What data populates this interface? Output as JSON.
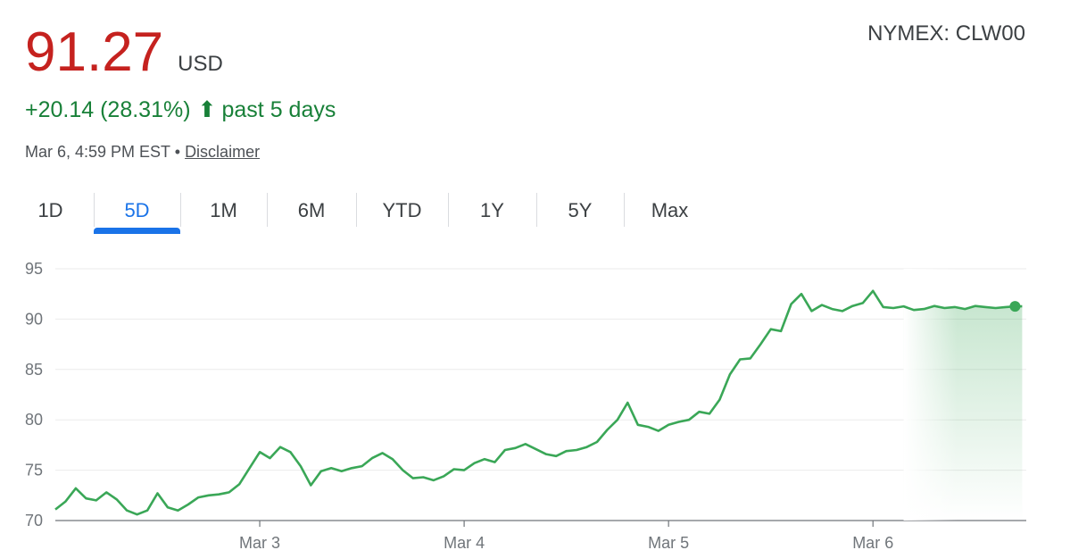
{
  "quote": {
    "price": "91.27",
    "currency": "USD",
    "exchange": "NYMEX: CLW00",
    "change": "+20.14 (28.31%)",
    "change_arrow": "⬆",
    "period_text": "past 5 days",
    "timestamp": "Mar 6, 4:59 PM EST •",
    "disclaimer": "Disclaimer"
  },
  "tabs": [
    {
      "label": "1D"
    },
    {
      "label": "5D",
      "active": true
    },
    {
      "label": "1M"
    },
    {
      "label": "6M"
    },
    {
      "label": "YTD"
    },
    {
      "label": "1Y"
    },
    {
      "label": "5Y"
    },
    {
      "label": "Max"
    }
  ],
  "colors": {
    "price": "#c5221f",
    "positive": "#188038",
    "line": "#3aa757",
    "accent": "#1a73e8"
  },
  "chart_data": {
    "type": "line",
    "ylim": [
      70,
      95
    ],
    "yticks": [
      70,
      75,
      80,
      85,
      90,
      95
    ],
    "x_ticks": [
      {
        "label": "Mar 3",
        "x": 1
      },
      {
        "label": "Mar 4",
        "x": 2
      },
      {
        "label": "Mar 5",
        "x": 3
      },
      {
        "label": "Mar 6",
        "x": 4
      }
    ],
    "xlim": [
      0,
      4.75
    ],
    "grid": true,
    "area_fill_from_x": 4.15,
    "last_point_marker": true,
    "series": [
      {
        "x": [
          0.0,
          0.05,
          0.1,
          0.15,
          0.2,
          0.25,
          0.3,
          0.35,
          0.4,
          0.45,
          0.5,
          0.55,
          0.6,
          0.65,
          0.7,
          0.75,
          0.8,
          0.85,
          0.9,
          0.95,
          1.0,
          1.05,
          1.1,
          1.15,
          1.2,
          1.25,
          1.3,
          1.35,
          1.4,
          1.45,
          1.5,
          1.55,
          1.6,
          1.65,
          1.7,
          1.75,
          1.8,
          1.85,
          1.9,
          1.95,
          2.0,
          2.05,
          2.1,
          2.15,
          2.2,
          2.25,
          2.3,
          2.35,
          2.4,
          2.45,
          2.5,
          2.55,
          2.6,
          2.65,
          2.7,
          2.75,
          2.8,
          2.85,
          2.9,
          2.95,
          3.0,
          3.05,
          3.1,
          3.15,
          3.2,
          3.25,
          3.3,
          3.35,
          3.4,
          3.45,
          3.5,
          3.55,
          3.6,
          3.65,
          3.7,
          3.75,
          3.8,
          3.85,
          3.9,
          3.95,
          4.0,
          4.05,
          4.1,
          4.15,
          4.2,
          4.25,
          4.3,
          4.35,
          4.4,
          4.45,
          4.5,
          4.55,
          4.6,
          4.65,
          4.7,
          4.73
        ],
        "y": [
          71.1,
          71.9,
          73.2,
          72.2,
          72.0,
          72.8,
          72.1,
          71.0,
          70.6,
          71.0,
          72.7,
          71.3,
          71.0,
          71.6,
          72.3,
          72.5,
          72.6,
          72.8,
          73.6,
          75.2,
          76.8,
          76.2,
          77.3,
          76.8,
          75.4,
          73.5,
          74.9,
          75.2,
          74.9,
          75.2,
          75.4,
          76.2,
          76.7,
          76.1,
          75.0,
          74.2,
          74.3,
          74.0,
          74.4,
          75.1,
          75.0,
          75.7,
          76.1,
          75.8,
          77.0,
          77.2,
          77.6,
          77.1,
          76.6,
          76.4,
          76.9,
          77.0,
          77.3,
          77.8,
          79.0,
          80.0,
          81.7,
          79.5,
          79.3,
          78.9,
          79.5,
          79.8,
          80.0,
          80.8,
          80.6,
          82.0,
          84.5,
          86.0,
          86.1,
          87.5,
          89.0,
          88.8,
          91.5,
          92.5,
          90.8,
          91.4,
          91.0,
          90.8,
          91.3,
          91.6,
          92.8,
          91.2,
          91.1,
          91.27,
          90.9,
          91.0,
          91.3,
          91.1,
          91.2,
          91.0,
          91.3,
          91.2,
          91.1,
          91.2,
          91.27,
          91.27
        ]
      }
    ]
  }
}
